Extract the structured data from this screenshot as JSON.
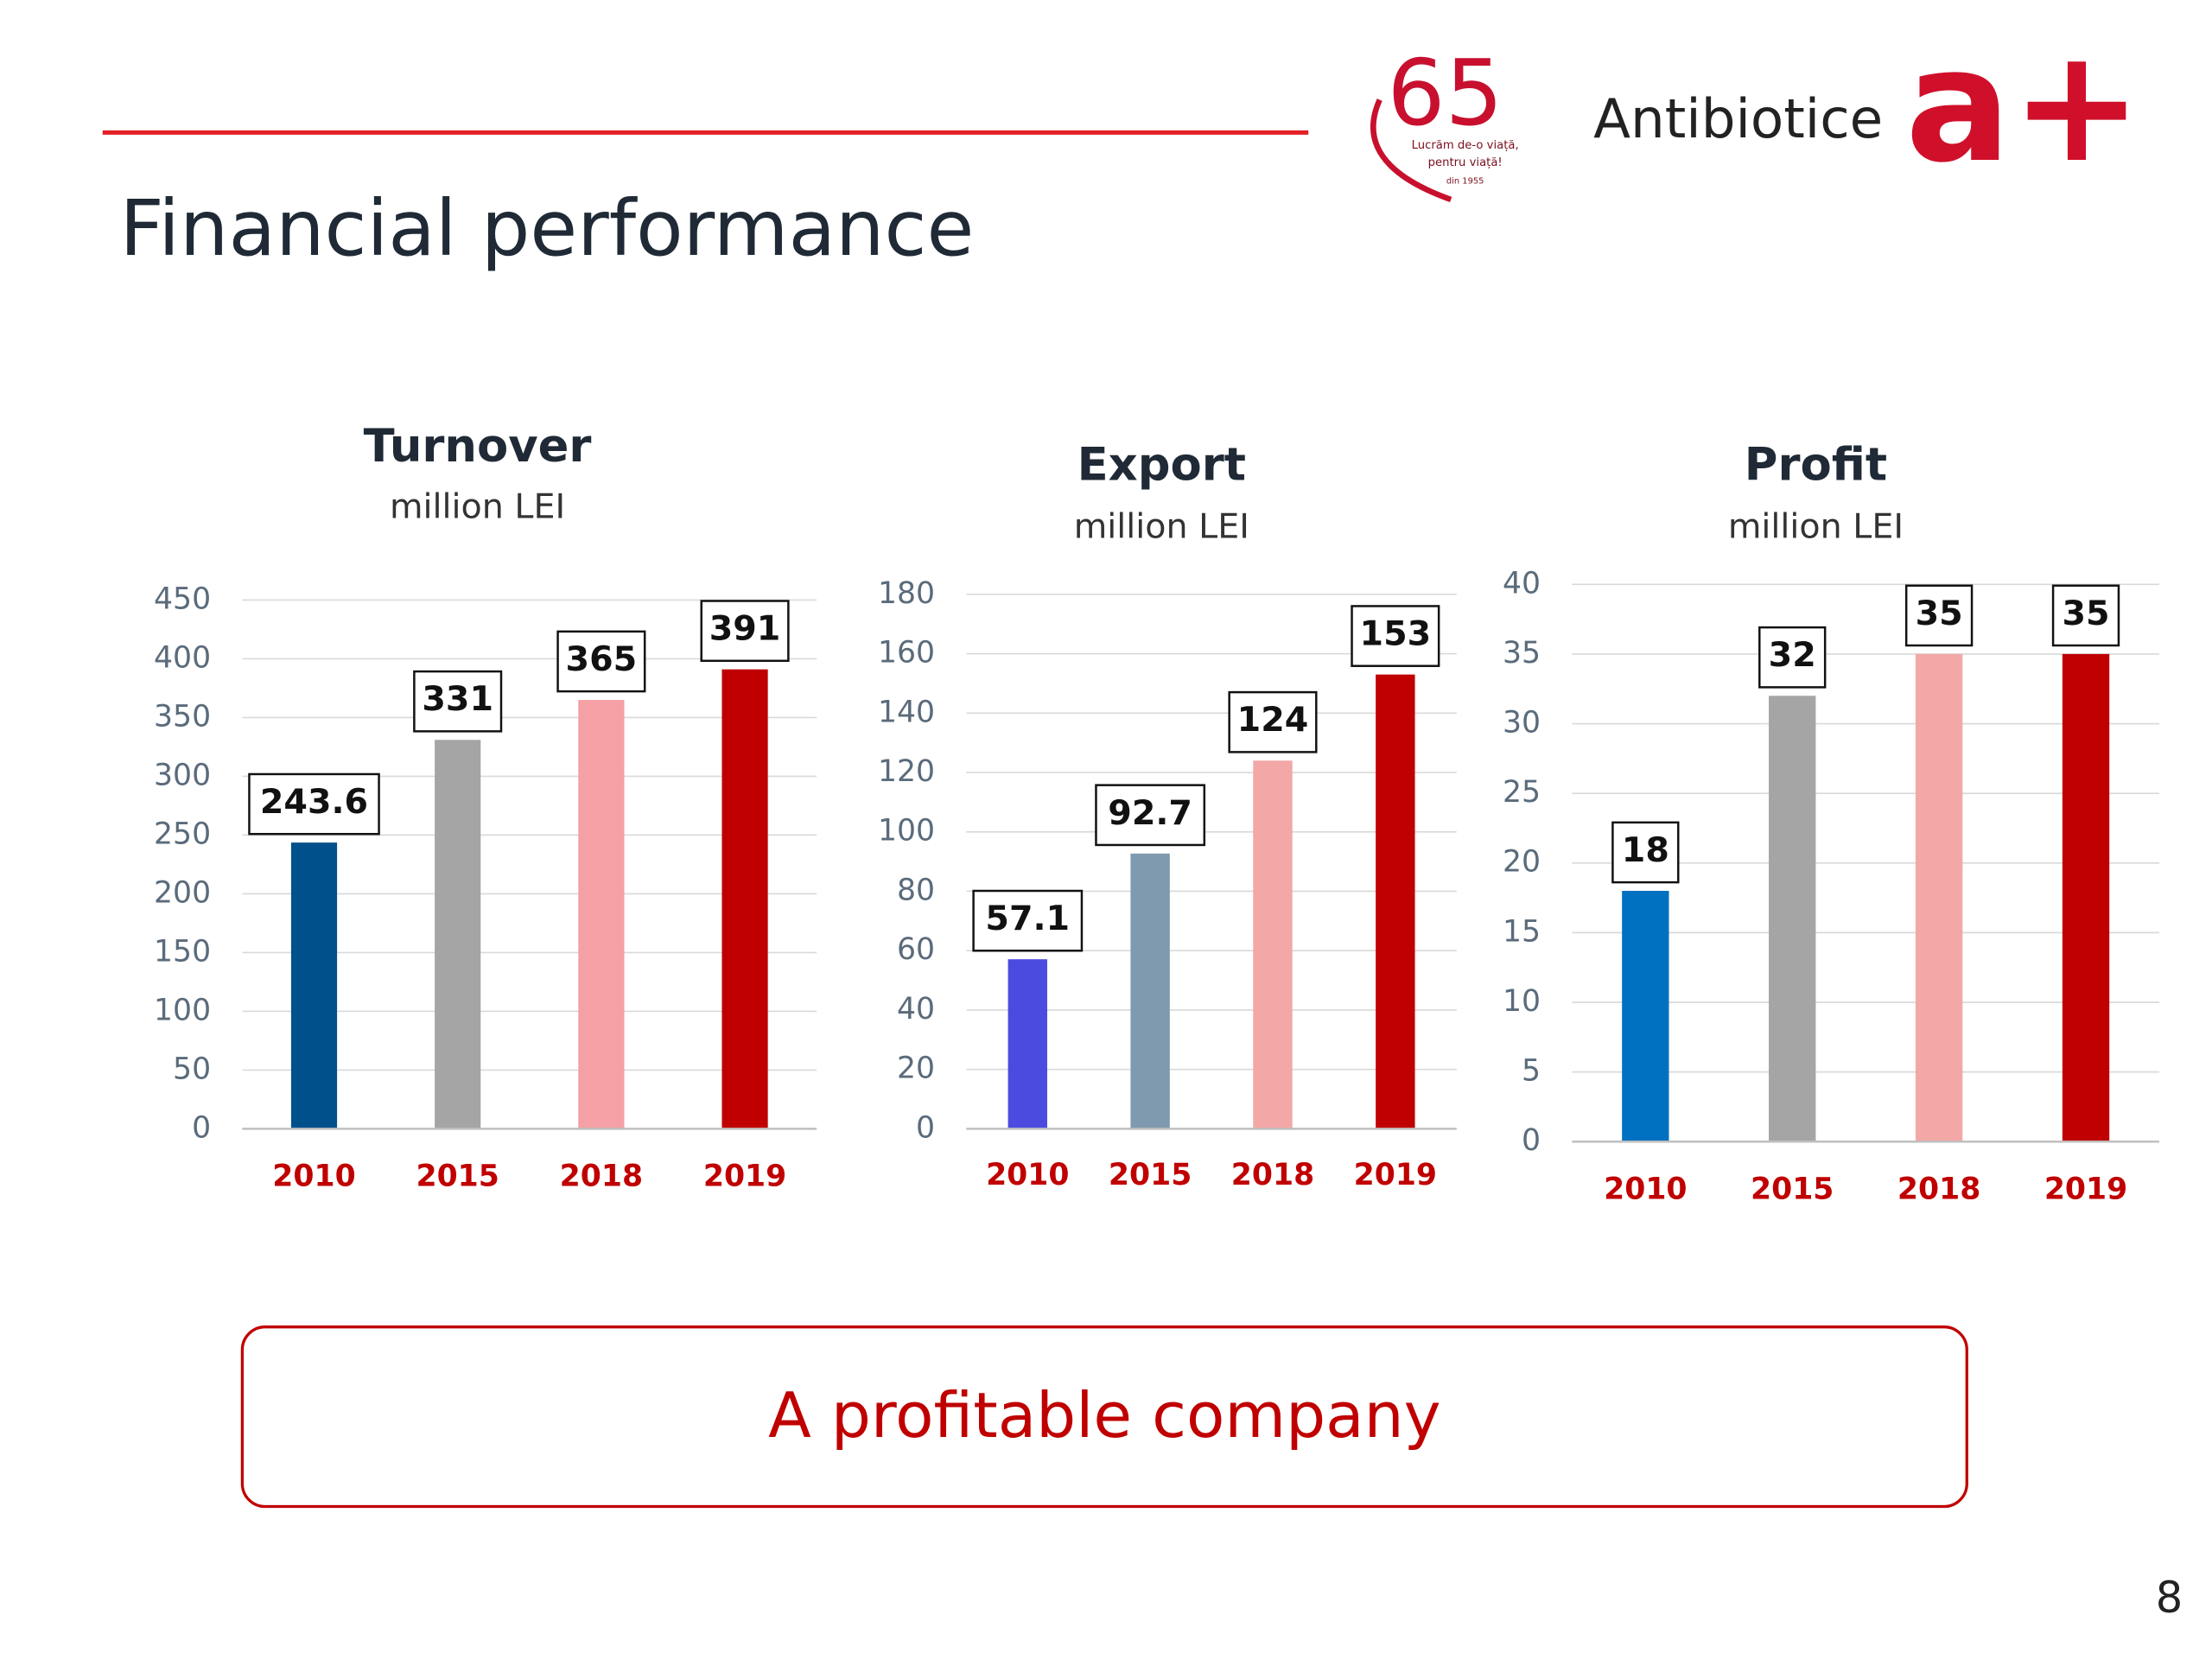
{
  "header": {
    "title": "Financial performance",
    "logo_number": "65",
    "logo_motto_1": "Lucrăm de-o viață,",
    "logo_motto_2": "pentru viață!",
    "logo_since": "din 1955",
    "brand": "Antibiotice",
    "brand_mark": "a+"
  },
  "chart_data": [
    {
      "type": "bar",
      "title": "Turnover",
      "subtitle": "million LEI",
      "categories": [
        "2010",
        "2015",
        "2018",
        "2019"
      ],
      "values": [
        243.6,
        331,
        365,
        391
      ],
      "colors": [
        "#00508c",
        "#a5a5a5",
        "#f4a0a4",
        "#c00000"
      ],
      "ylim": [
        0,
        450
      ],
      "yticks": [
        0,
        50,
        100,
        150,
        200,
        250,
        300,
        350,
        400,
        450
      ],
      "grid": true
    },
    {
      "type": "bar",
      "title": "Export",
      "subtitle": "million LEI",
      "categories": [
        "2010",
        "2015",
        "2018",
        "2019"
      ],
      "values": [
        57.1,
        92.7,
        124,
        153
      ],
      "colors": [
        "#4b4be0",
        "#7f9aae",
        "#f4a7a7",
        "#c00000"
      ],
      "ylim": [
        0,
        180
      ],
      "yticks": [
        0,
        20,
        40,
        60,
        80,
        100,
        120,
        140,
        160,
        180
      ],
      "grid": true
    },
    {
      "type": "bar",
      "title": "Profit",
      "subtitle": "million LEI",
      "categories": [
        "2010",
        "2015",
        "2018",
        "2019"
      ],
      "values": [
        18,
        32,
        35,
        35
      ],
      "colors": [
        "#0070c0",
        "#a5a5a5",
        "#f4a7a7",
        "#c00000"
      ],
      "ylim": [
        0,
        40
      ],
      "yticks": [
        0,
        5,
        10,
        15,
        20,
        25,
        30,
        35,
        40
      ],
      "grid": true
    }
  ],
  "callout": "A profitable company",
  "page_number": "8"
}
